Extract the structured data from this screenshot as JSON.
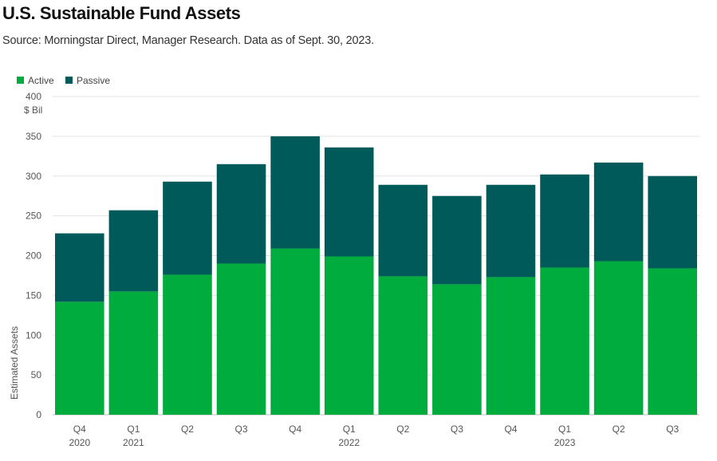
{
  "header": {
    "title": "U.S. Sustainable Fund Assets",
    "subtitle": "Source: Morningstar Direct, Manager Research. Data as of Sept. 30, 2023."
  },
  "colors": {
    "active": "#00ac3e",
    "passive": "#005a5a",
    "grid": "#e3e3e3"
  },
  "chart_data": {
    "type": "bar",
    "stacked": true,
    "title": "U.S. Sustainable Fund Assets",
    "ylabel": "Estimated Assets",
    "yunit": "$ Bil",
    "ylim": [
      0,
      400
    ],
    "yticks": [
      0,
      50,
      100,
      150,
      200,
      250,
      300,
      350,
      400
    ],
    "grid": true,
    "legend_position": "top-left",
    "categories": [
      "Q4 2020",
      "Q1 2021",
      "Q2 2021",
      "Q3 2021",
      "Q4 2021",
      "Q1 2022",
      "Q2 2022",
      "Q3 2022",
      "Q4 2022",
      "Q1 2023",
      "Q2 2023",
      "Q3 2023"
    ],
    "tick_labels": [
      {
        "quarter": "Q4",
        "year": "2020"
      },
      {
        "quarter": "Q1",
        "year": "2021"
      },
      {
        "quarter": "Q2",
        "year": ""
      },
      {
        "quarter": "Q3",
        "year": ""
      },
      {
        "quarter": "Q4",
        "year": ""
      },
      {
        "quarter": "Q1",
        "year": "2022"
      },
      {
        "quarter": "Q2",
        "year": ""
      },
      {
        "quarter": "Q3",
        "year": ""
      },
      {
        "quarter": "Q4",
        "year": ""
      },
      {
        "quarter": "Q1",
        "year": "2023"
      },
      {
        "quarter": "Q2",
        "year": ""
      },
      {
        "quarter": "Q3",
        "year": ""
      }
    ],
    "series": [
      {
        "name": "Active",
        "values": [
          142,
          155,
          176,
          190,
          209,
          199,
          174,
          164,
          173,
          185,
          193,
          184
        ]
      },
      {
        "name": "Passive",
        "values": [
          86,
          102,
          117,
          125,
          141,
          137,
          115,
          111,
          116,
          117,
          124,
          116
        ]
      }
    ]
  }
}
